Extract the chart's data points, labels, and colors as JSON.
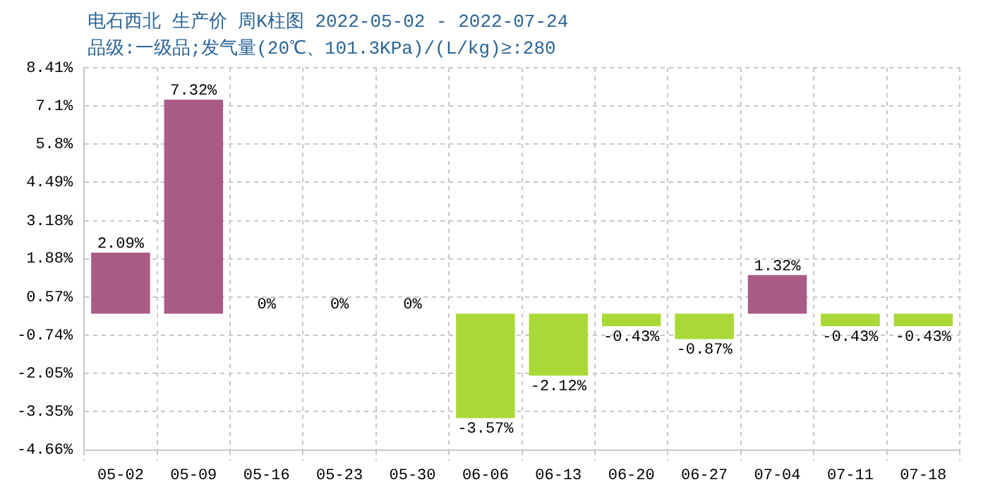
{
  "chart_data": {
    "type": "bar",
    "title": "电石西北 生产价 周K柱图 2022-05-02 - 2022-07-24",
    "subtitle": "品级:一级品;发气量(20℃、101.3KPa)/(L/kg)≥:280",
    "categories": [
      "05-02",
      "05-09",
      "05-16",
      "05-23",
      "05-30",
      "06-06",
      "06-13",
      "06-20",
      "06-27",
      "07-04",
      "07-11",
      "07-18"
    ],
    "values": [
      2.09,
      7.32,
      0,
      0,
      0,
      -3.57,
      -2.12,
      -0.43,
      -0.87,
      1.32,
      -0.43,
      -0.43
    ],
    "value_labels": [
      "2.09%",
      "7.32%",
      "0%",
      "0%",
      "0%",
      "-3.57%",
      "-2.12%",
      "-0.43%",
      "-0.87%",
      "1.32%",
      "-0.43%",
      "-0.43%"
    ],
    "colors": [
      "#a95b85",
      "#a95b85",
      "#a95b85",
      "#a95b85",
      "#a95b85",
      "#a9d936",
      "#a9d936",
      "#a9d936",
      "#a9d936",
      "#a95b85",
      "#a9d936",
      "#a9d936"
    ],
    "ylim": [
      -4.66,
      8.41
    ],
    "yticks": [
      {
        "value": 8.41,
        "label": "8.41%"
      },
      {
        "value": 7.1,
        "label": "7.1%"
      },
      {
        "value": 5.8,
        "label": "5.8%"
      },
      {
        "value": 4.49,
        "label": "4.49%"
      },
      {
        "value": 3.18,
        "label": "3.18%"
      },
      {
        "value": 1.88,
        "label": "1.88%"
      },
      {
        "value": 0.57,
        "label": "0.57%"
      },
      {
        "value": -0.74,
        "label": "-0.74%"
      },
      {
        "value": -2.05,
        "label": "-2.05%"
      },
      {
        "value": -3.35,
        "label": "-3.35%"
      },
      {
        "value": -4.66,
        "label": "-4.66%"
      }
    ],
    "grid": true
  }
}
